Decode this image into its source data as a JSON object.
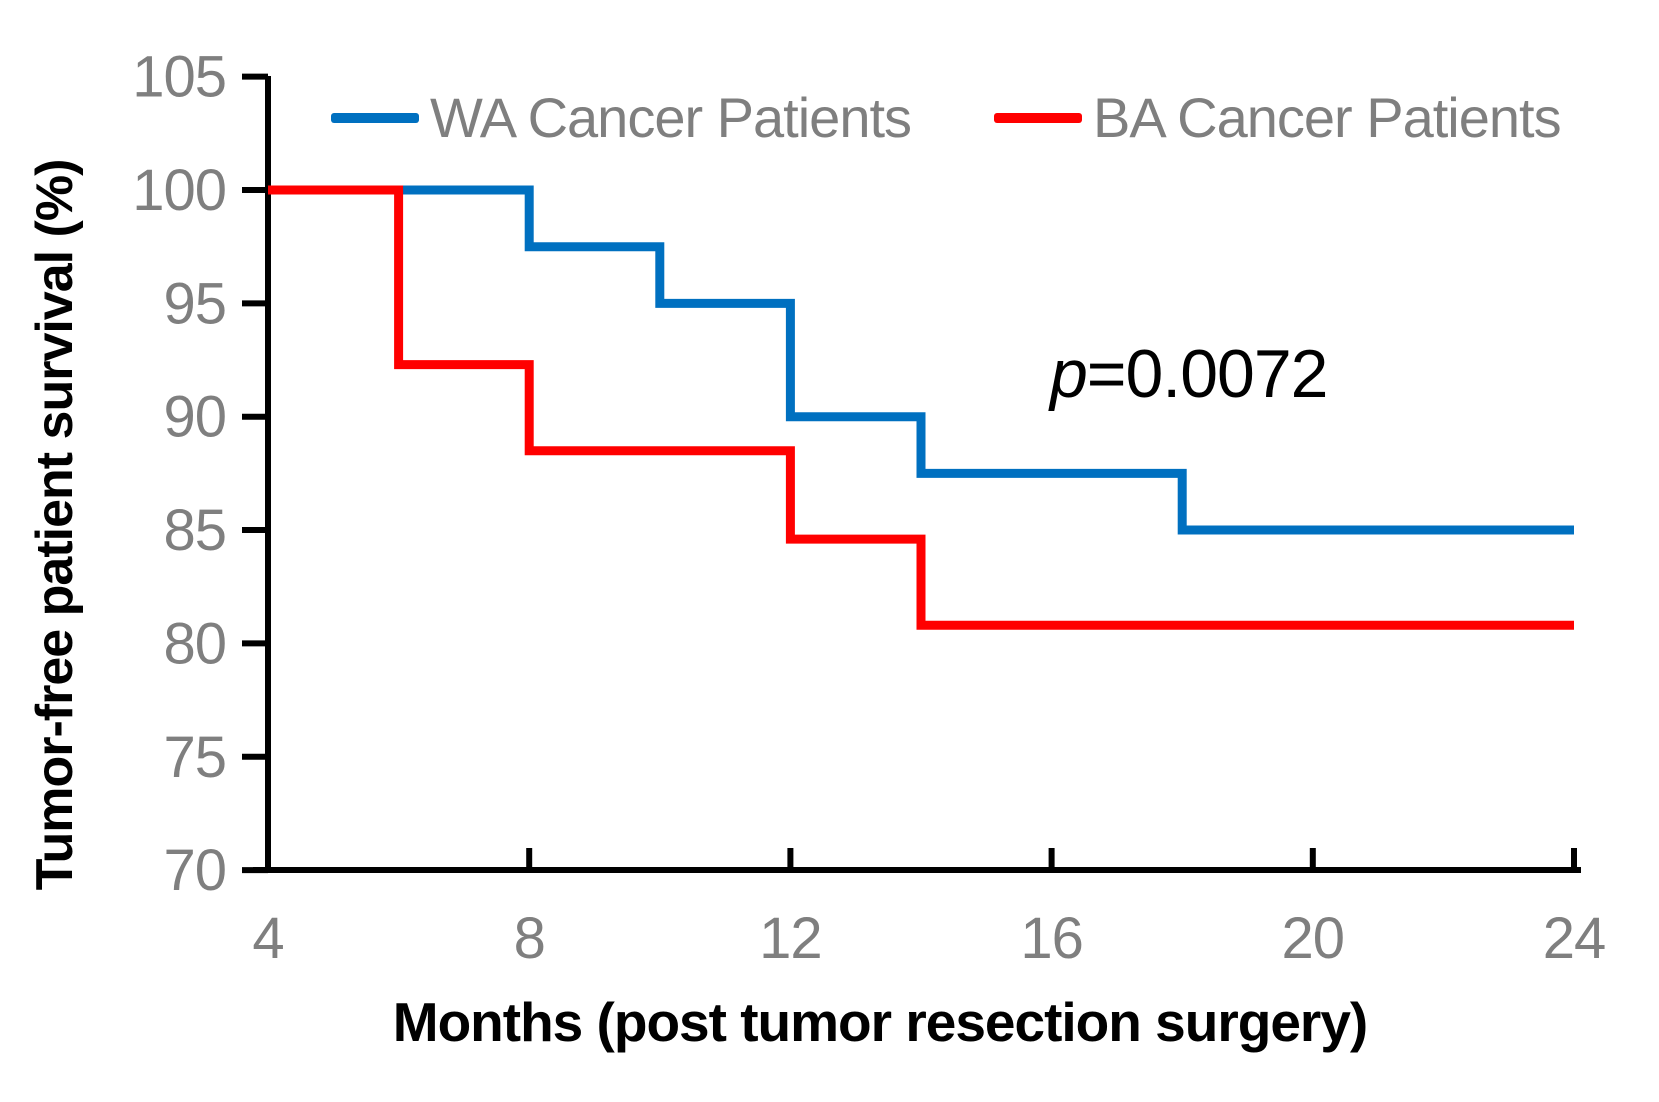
{
  "chart_data": {
    "type": "line",
    "subtype": "step-survival-curve",
    "title": "",
    "xlabel": "Months (post tumor resection surgery)",
    "ylabel": "Tumor-free patient survival (%)",
    "xlim": [
      4,
      24
    ],
    "ylim": [
      70,
      105
    ],
    "xticks": [
      4,
      8,
      12,
      16,
      20,
      24
    ],
    "yticks": [
      70,
      75,
      80,
      85,
      90,
      95,
      100,
      105
    ],
    "grid": false,
    "legend_position": "top",
    "axis_color": "#000000",
    "tick_label_color": "#7f7f7f",
    "legend_text_color": "#7f7f7f",
    "series": [
      {
        "name": "WA Cancer Patients",
        "color": "#0070c0",
        "points": [
          [
            4,
            100
          ],
          [
            8,
            100
          ],
          [
            8,
            97.5
          ],
          [
            10,
            97.5
          ],
          [
            10,
            95
          ],
          [
            12,
            95
          ],
          [
            12,
            90
          ],
          [
            14,
            90
          ],
          [
            14,
            87.5
          ],
          [
            18,
            87.5
          ],
          [
            18,
            85
          ],
          [
            24,
            85
          ]
        ]
      },
      {
        "name": "BA Cancer Patients",
        "color": "#ff0000",
        "points": [
          [
            4,
            100
          ],
          [
            6,
            100
          ],
          [
            6,
            92.3
          ],
          [
            8,
            92.3
          ],
          [
            8,
            88.5
          ],
          [
            12,
            88.5
          ],
          [
            12,
            84.6
          ],
          [
            14,
            84.6
          ],
          [
            14,
            80.8
          ],
          [
            24,
            80.8
          ]
        ]
      }
    ],
    "annotation": {
      "p_symbol": "p",
      "p_rest": "=0.0072",
      "x": 18.1,
      "y": 91.9
    }
  }
}
